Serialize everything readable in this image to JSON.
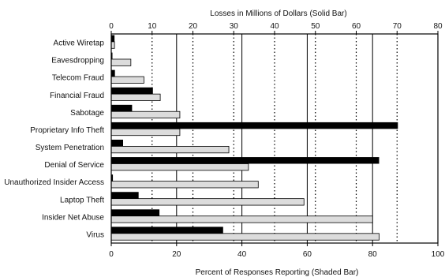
{
  "chart_data": {
    "type": "bar",
    "title_top": "Losses in Millions of Dollars (Solid Bar)",
    "title_bottom": "Percent of Responses Reporting (Shaded Bar)",
    "top_axis": {
      "label": "Losses in Millions of Dollars (Solid Bar)",
      "range": [
        0,
        80
      ],
      "ticks": [
        0,
        10,
        20,
        30,
        40,
        50,
        60,
        70,
        80
      ]
    },
    "bottom_axis": {
      "label": "Percent of Responses Reporting (Shaded Bar)",
      "range": [
        0,
        100
      ],
      "ticks": [
        0,
        20,
        40,
        60,
        80,
        100
      ]
    },
    "grid": "vertical dotted (top scale) and solid (bottom scale)",
    "categories": [
      "Active Wiretap",
      "Eavesdropping",
      "Telecom Fraud",
      "Financial Fraud",
      "Sabotage",
      "Proprietary Info Theft",
      "System Penetration",
      "Denial of Service",
      "Unauthorized Insider Access",
      "Laptop Theft",
      "Insider Net Abuse",
      "Virus"
    ],
    "series": [
      {
        "name": "Losses in Millions of Dollars (Solid Bar)",
        "axis": "top",
        "color": "#000000",
        "values": [
          0.8,
          0.1,
          0.9,
          10.2,
          5.1,
          70.2,
          2.9,
          65.6,
          0.4,
          6.7,
          11.8,
          27.4
        ]
      },
      {
        "name": "Percent of Responses Reporting (Shaded Bar)",
        "axis": "bottom",
        "color": "#dcdcdc",
        "values": [
          1,
          6,
          10,
          15,
          21,
          21,
          36,
          42,
          45,
          59,
          80,
          82
        ]
      }
    ]
  }
}
